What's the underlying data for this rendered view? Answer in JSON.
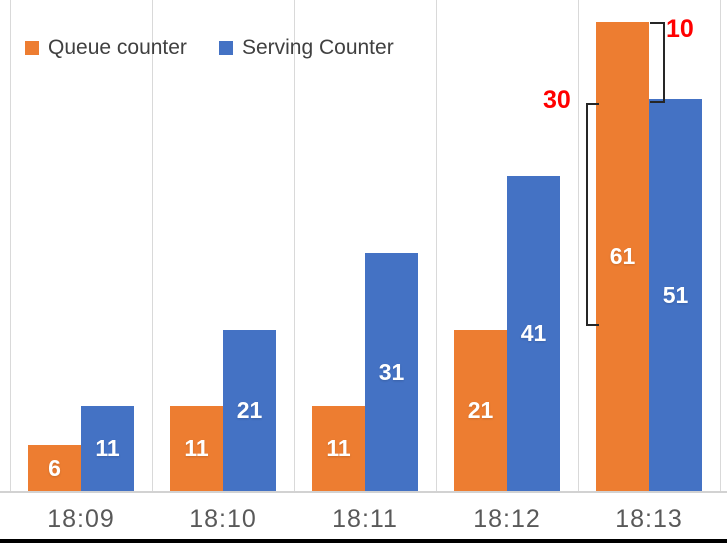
{
  "chart_data": {
    "type": "bar",
    "title": "",
    "xlabel": "",
    "ylabel": "",
    "categories": [
      "18:09",
      "18:10",
      "18:11",
      "18:12",
      "18:13"
    ],
    "series": [
      {
        "name": "Queue counter",
        "color": "#ED7D31",
        "values": [
          6,
          11,
          11,
          21,
          61
        ]
      },
      {
        "name": "Serving Counter",
        "color": "#4472C4",
        "values": [
          11,
          21,
          31,
          41,
          51
        ]
      }
    ],
    "ylim": [
      0,
      61
    ],
    "y_axis_visible": false,
    "grid": "vertical category separator lines",
    "gridline_color": "#d9d9d9",
    "legend_position": "top-left",
    "data_labels": {
      "position": "inside-center",
      "color": "#ffffff",
      "bold": true
    }
  },
  "legend": {
    "items": [
      {
        "label": "Queue counter",
        "color": "#ED7D31"
      },
      {
        "label": "Serving Counter",
        "color": "#4472C4"
      }
    ]
  },
  "annotations": [
    {
      "id": "diff-30",
      "label": "30",
      "color": "#FF0000",
      "bracket": "left of 18:13 orange bar, ticks pointing right"
    },
    {
      "id": "diff-10",
      "label": "10",
      "color": "#FF0000",
      "bracket": "right of 18:13 orange bar top, spanning down to blue bar top"
    }
  ]
}
